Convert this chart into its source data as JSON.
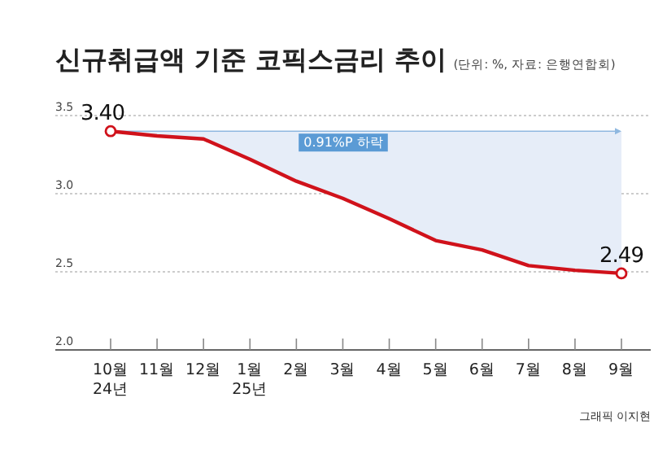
{
  "chart_data": {
    "type": "line",
    "title": "신규취급액 기준 코픽스금리 추이",
    "subtitle": "(단위: %, 자료: 은행연합회)",
    "categories": [
      "10월 24년",
      "11월",
      "12월",
      "1월 25년",
      "2월",
      "3월",
      "4월",
      "5월",
      "6월",
      "7월",
      "8월",
      "9월"
    ],
    "series": [
      {
        "color": "#d0121b",
        "values": [
          3.4,
          3.37,
          3.35,
          3.22,
          3.08,
          2.97,
          2.84,
          2.7,
          2.64,
          2.54,
          2.51,
          2.49
        ],
        "lower": [
          3.4,
          3.37,
          3.35,
          3.22,
          3.08,
          2.97,
          2.84,
          2.7,
          2.64,
          2.54,
          2.51,
          2.49
        ],
        "upper": [
          3.4,
          3.4,
          3.4,
          3.4,
          3.4,
          3.4,
          3.4,
          3.4,
          3.4,
          3.4,
          3.4,
          3.4
        ],
        "value_labels": [
          "3.40",
          null,
          null,
          null,
          null,
          null,
          null,
          null,
          null,
          null,
          null,
          "2.49"
        ]
      }
    ],
    "ylim": [
      2.0,
      3.5
    ],
    "yticks": [
      {
        "value": 2.0,
        "label": "2.0"
      },
      {
        "value": 2.5,
        "label": "2.5"
      },
      {
        "value": 3.0,
        "label": "3.0"
      },
      {
        "value": 3.5,
        "label": "3.5"
      }
    ],
    "ref_lines": [
      {
        "axis": "y",
        "value": 3.4,
        "label": "0.91%P 하락",
        "color": "#8fb8e0"
      }
    ],
    "grid": "y",
    "line_style": "solid",
    "annotations": [
      "그래픽 이지현"
    ]
  }
}
